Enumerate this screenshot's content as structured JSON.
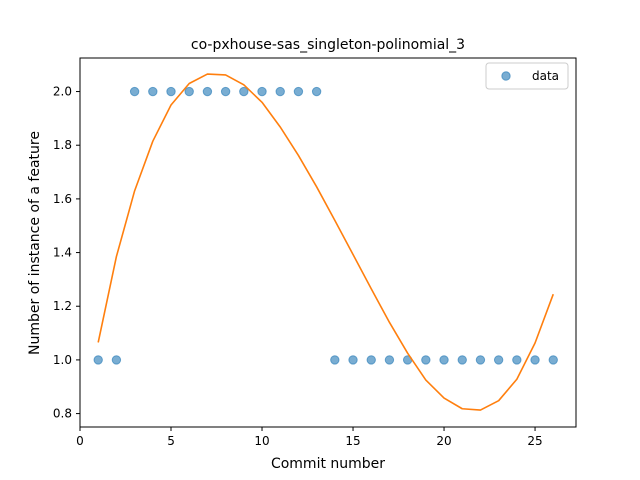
{
  "chart_data": {
    "type": "scatter",
    "title": "co-pxhouse-sas_singleton-polinomial_3",
    "xlabel": "Commit number",
    "ylabel": "Number of instance of a feature",
    "xlim": [
      0,
      27.25
    ],
    "ylim": [
      0.75,
      2.125
    ],
    "xticks": [
      0,
      5,
      10,
      15,
      20,
      25
    ],
    "xtick_labels": [
      "0",
      "5",
      "10",
      "15",
      "20",
      "25"
    ],
    "yticks": [
      0.8,
      1.0,
      1.2,
      1.4,
      1.6,
      1.8,
      2.0
    ],
    "ytick_labels": [
      "0.8",
      "1.0",
      "1.2",
      "1.4",
      "1.6",
      "1.8",
      "2.0"
    ],
    "grid": false,
    "legend": {
      "position": "top-right",
      "entries": [
        "data"
      ]
    },
    "series": [
      {
        "name": "data",
        "type": "scatter",
        "color": "#1f77b4",
        "x": [
          1,
          2,
          3,
          4,
          5,
          6,
          7,
          8,
          9,
          10,
          11,
          12,
          13,
          14,
          15,
          16,
          17,
          18,
          19,
          20,
          21,
          22,
          23,
          24,
          25,
          26
        ],
        "y": [
          1,
          1,
          2,
          2,
          2,
          2,
          2,
          2,
          2,
          2,
          2,
          2,
          2,
          1,
          1,
          1,
          1,
          1,
          1,
          1,
          1,
          1,
          1,
          1,
          1,
          1
        ]
      },
      {
        "type": "line",
        "color": "#ff7f0e",
        "x": [
          1,
          2,
          3,
          4,
          5,
          6,
          7,
          8,
          9,
          10,
          11,
          12,
          13,
          14,
          15,
          16,
          17,
          18,
          19,
          20,
          21,
          22,
          23,
          24,
          25,
          26
        ],
        "y": [
          1.065,
          1.385,
          1.63,
          1.815,
          1.95,
          2.03,
          2.065,
          2.062,
          2.025,
          1.96,
          1.868,
          1.762,
          1.645,
          1.52,
          1.393,
          1.265,
          1.14,
          1.025,
          0.925,
          0.858,
          0.818,
          0.813,
          0.848,
          0.928,
          1.063,
          1.245
        ]
      }
    ]
  }
}
